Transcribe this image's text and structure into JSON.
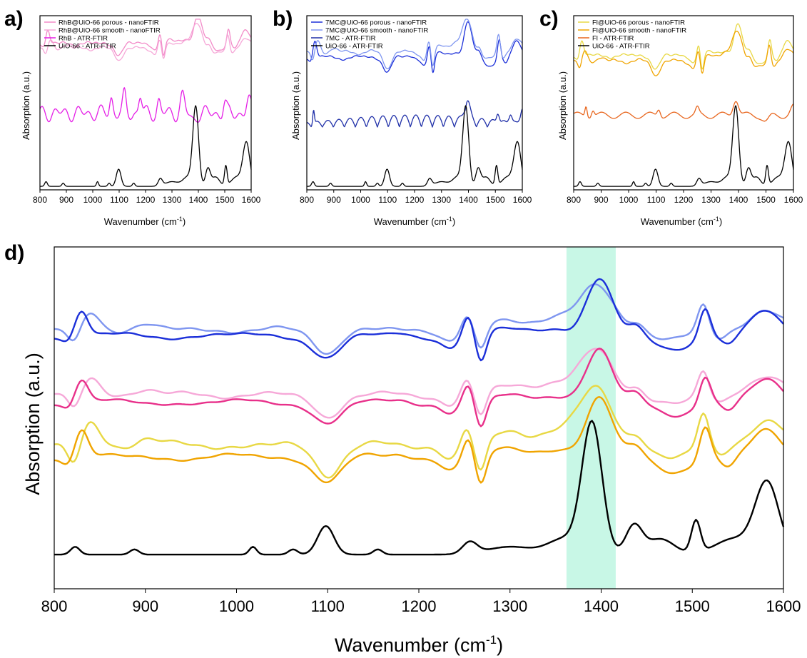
{
  "chart_data": [
    {
      "id": "a",
      "type": "line",
      "panel_label": "a)",
      "xlabel": "Wavenumber (cm",
      "xlabel_sup": "-1",
      "xlabel_close": ")",
      "ylabel": "Absorption (a.u.)",
      "xlim": [
        800,
        1600
      ],
      "xticks": [
        800,
        900,
        1000,
        1100,
        1200,
        1300,
        1400,
        1500,
        1600
      ],
      "xtick_labels": [
        "800",
        "900",
        "1000",
        "1100",
        "1200",
        "1300",
        "1400",
        "1500",
        "1600"
      ],
      "legend_position": "top-left",
      "series": [
        {
          "name": "RhB@UiO-66 porous - nanoFTIR",
          "color": "#f28ac8",
          "kind": "nano_porous",
          "offset": 0.76,
          "amp": 0.16,
          "ripple": 0.05
        },
        {
          "name": "RhB@UiO-66 smooth - nanoFTIR",
          "color": "#f6a8d8",
          "kind": "nano_smooth",
          "offset": 0.73,
          "amp": 0.15,
          "ripple": 0.05
        },
        {
          "name": "RhB - ATR-FTIR",
          "color": "#e51fe6",
          "kind": "dye_rhb",
          "offset": 0.37,
          "amp": 0.2,
          "ripple": 0.0
        },
        {
          "name": "UiO-66 - ATR-FTIR",
          "color": "#000000",
          "kind": "uio",
          "offset": 0.02,
          "amp": 0.45,
          "ripple": 0.0
        }
      ]
    },
    {
      "id": "b",
      "type": "line",
      "panel_label": "b)",
      "xlabel": "Wavenumber (cm",
      "xlabel_sup": "-1",
      "xlabel_close": ")",
      "ylabel": "Absorption (a.u.)",
      "xlim": [
        800,
        1600
      ],
      "xticks": [
        800,
        900,
        1000,
        1100,
        1200,
        1300,
        1400,
        1500,
        1600
      ],
      "xtick_labels": [
        "800",
        "900",
        "1000",
        "1100",
        "1200",
        "1300",
        "1400",
        "1500",
        "1600"
      ],
      "legend_position": "top-left",
      "series": [
        {
          "name": "7MC@UiO-66 porous - nanoFTIR",
          "color": "#1b2fd9",
          "kind": "nano_porous",
          "offset": 0.66,
          "amp": 0.2,
          "ripple": 0.03
        },
        {
          "name": "7MC@UiO-66 smooth - nanoFTIR",
          "color": "#7f96f0",
          "kind": "nano_smooth",
          "offset": 0.68,
          "amp": 0.2,
          "ripple": 0.03
        },
        {
          "name": "7MC - ATR-FTIR",
          "color": "#1f2fa8",
          "kind": "dye_7mc",
          "offset": 0.3,
          "amp": 0.2,
          "ripple": 0.0
        },
        {
          "name": "UiO-66 - ATR-FTIR",
          "color": "#000000",
          "kind": "uio",
          "offset": 0.02,
          "amp": 0.45,
          "ripple": 0.0
        }
      ]
    },
    {
      "id": "c",
      "type": "line",
      "panel_label": "c)",
      "xlabel": "Wavenumber (cm",
      "xlabel_sup": "-1",
      "xlabel_close": ")",
      "ylabel": "Absorption (a.u.)",
      "xlim": [
        800,
        1600
      ],
      "xticks": [
        800,
        900,
        1000,
        1100,
        1200,
        1300,
        1400,
        1500,
        1600
      ],
      "xtick_labels": [
        "800",
        "900",
        "1000",
        "1100",
        "1200",
        "1300",
        "1400",
        "1500",
        "1600"
      ],
      "legend_position": "top-left",
      "series": [
        {
          "name": "Fl@UiO-66 porous - nanoFTIR",
          "color": "#e8d844",
          "kind": "nano_porous",
          "offset": 0.68,
          "amp": 0.18,
          "ripple": 0.04
        },
        {
          "name": "Fl@UiO-66 smooth - nanoFTIR",
          "color": "#f0a400",
          "kind": "nano_smooth",
          "offset": 0.64,
          "amp": 0.18,
          "ripple": 0.04
        },
        {
          "name": "Fl - ATR-FTIR",
          "color": "#e8661e",
          "kind": "dye_fl",
          "offset": 0.38,
          "amp": 0.12,
          "ripple": 0.0
        },
        {
          "name": "UiO-66 - ATR-FTIR",
          "color": "#000000",
          "kind": "uio",
          "offset": 0.02,
          "amp": 0.45,
          "ripple": 0.0
        }
      ]
    },
    {
      "id": "d",
      "type": "line",
      "panel_label": "d)",
      "xlabel": "Wavenumber (cm",
      "xlabel_sup": "-1",
      "xlabel_close": ")",
      "ylabel": "Absorption (a.u.)",
      "xlim": [
        800,
        1600
      ],
      "xticks": [
        800,
        900,
        1000,
        1100,
        1200,
        1300,
        1400,
        1500,
        1600
      ],
      "xtick_labels": [
        "800",
        "900",
        "1000",
        "1100",
        "1200",
        "1300",
        "1400",
        "1500",
        "1600"
      ],
      "highlight_band": {
        "x_from": 1362,
        "x_to": 1416,
        "color": "#c8f7e6"
      },
      "series": [
        {
          "color": "#7f96f0",
          "kind": "nano_smooth",
          "offset": 0.68,
          "amp": 0.14,
          "ripple": 0.03
        },
        {
          "color": "#1b2fd9",
          "kind": "nano_porous",
          "offset": 0.66,
          "amp": 0.16,
          "ripple": 0.02
        },
        {
          "color": "#f6a8d8",
          "kind": "nano_smooth",
          "offset": 0.49,
          "amp": 0.14,
          "ripple": 0.03
        },
        {
          "color": "#e8308a",
          "kind": "nano_porous",
          "offset": 0.47,
          "amp": 0.15,
          "ripple": 0.02
        },
        {
          "color": "#e8d844",
          "kind": "nano_smooth",
          "offset": 0.32,
          "amp": 0.18,
          "ripple": 0.03
        },
        {
          "color": "#f0a400",
          "kind": "nano_porous",
          "offset": 0.3,
          "amp": 0.17,
          "ripple": 0.02
        },
        {
          "color": "#000000",
          "kind": "uio",
          "offset": 0.1,
          "amp": 0.38,
          "ripple": 0.0
        }
      ]
    }
  ]
}
